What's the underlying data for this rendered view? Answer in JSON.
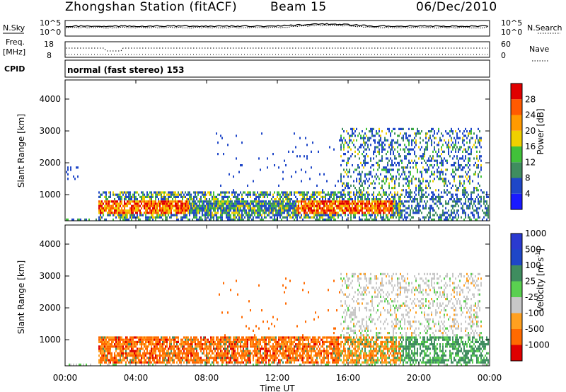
{
  "header": {
    "station": "Zhongshan Station (fitACF)",
    "beam": "Beam 15",
    "date": "06/Dec/2010"
  },
  "summary_panels": {
    "nsky_label": "N.Sky",
    "nsearch_label": "N.Search",
    "noise_ticks": [
      "10^5",
      "10^0"
    ],
    "freq_label_line1": "Freq.",
    "freq_label_line2": "[MHz]",
    "freq_ticks": [
      "18",
      "8"
    ],
    "nave_ticks": [
      "60",
      "0"
    ],
    "nave_label": "Nave",
    "cpid_label": "CPID",
    "cpid_text": "normal (fast stereo) 153"
  },
  "colors": {
    "power_scale": [
      "#1a1aff",
      "#1f47c8",
      "#3f8d5f",
      "#41c13a",
      "#f0d000",
      "#ff9a00",
      "#ff5a00",
      "#e00000"
    ],
    "velocity_scale": [
      "#e00000",
      "#ff6a00",
      "#ffa020",
      "#c8c8c8",
      "#5ad050",
      "#3f8d5f",
      "#1f47c8",
      "#2a3ad0"
    ]
  },
  "chart_data": [
    {
      "type": "heatmap",
      "name": "power",
      "ylabel": "Slant Range [km]",
      "ylim": [
        180,
        4600
      ],
      "yticks": [
        1000,
        2000,
        3000,
        4000
      ],
      "xlim": [
        0,
        24
      ],
      "xticks": [
        "00:00",
        "04:00",
        "08:00",
        "12:00",
        "16:00",
        "20:00",
        "00:00"
      ],
      "colorbar": {
        "label": "Power [dB]",
        "range": [
          0,
          32
        ],
        "ticks": [
          4,
          8,
          12,
          16,
          20,
          24,
          28
        ]
      }
    },
    {
      "type": "heatmap",
      "name": "velocity",
      "ylabel": "Slant Range [km]",
      "ylim": [
        180,
        4600
      ],
      "yticks": [
        1000,
        2000,
        3000,
        4000
      ],
      "xlim": [
        0,
        24
      ],
      "xticks": [
        "00:00",
        "04:00",
        "08:00",
        "12:00",
        "16:00",
        "20:00",
        "00:00"
      ],
      "xlabel": "Time UT",
      "colorbar": {
        "label": "Velocity [m s",
        "label_sup": "-1",
        "label_end": "]",
        "ticks": [
          "-1000",
          "-500",
          "-100",
          "-25",
          "25",
          "100",
          "500",
          "1000"
        ]
      }
    }
  ]
}
